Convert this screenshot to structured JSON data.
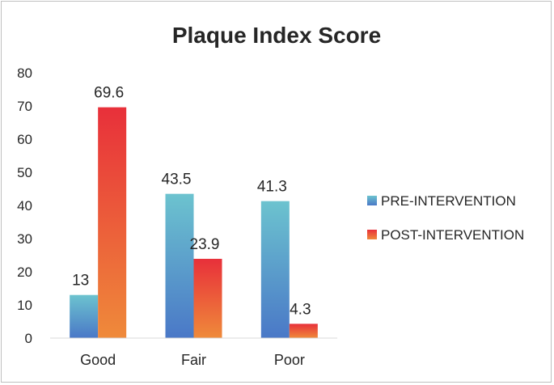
{
  "chart_data": {
    "type": "bar",
    "title": "Plaque Index Score",
    "categories": [
      "Good",
      "Fair",
      "Poor"
    ],
    "series": [
      {
        "name": "PRE-INTERVENTION",
        "values": [
          13,
          43.5,
          41.3
        ],
        "color_top": "#6cc3cf",
        "color_bottom": "#4a78c7"
      },
      {
        "name": "POST-INTERVENTION",
        "values": [
          69.6,
          23.9,
          4.3
        ],
        "color_top": "#e8303a",
        "color_bottom": "#ef8a3a"
      }
    ],
    "data_labels": [
      [
        "13",
        "43.5",
        "41.3"
      ],
      [
        "69.6",
        "23.9",
        "4.3"
      ]
    ],
    "yticks": [
      "0",
      "10",
      "20",
      "30",
      "40",
      "50",
      "60",
      "70",
      "80"
    ],
    "ylim": [
      0,
      80
    ],
    "legend_position": "right",
    "grid": false
  }
}
